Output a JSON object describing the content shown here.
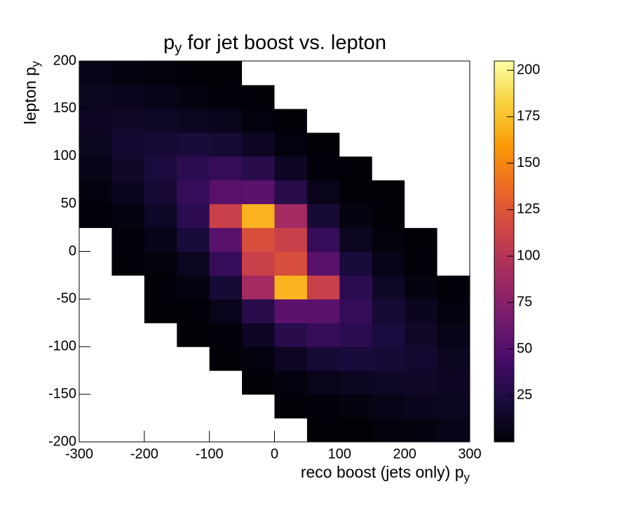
{
  "chart_data": {
    "type": "heatmap",
    "title": [
      "p",
      "y",
      " for jet boost vs. lepton"
    ],
    "xlabel": [
      "reco boost (jets only) p",
      "y"
    ],
    "ylabel": [
      "lepton p",
      "y"
    ],
    "xbins": [
      -300,
      -250,
      -200,
      -150,
      -100,
      -50,
      0,
      50,
      100,
      150,
      200,
      250,
      300
    ],
    "ybins": [
      -200,
      -175,
      -150,
      -125,
      -100,
      -75,
      -50,
      -25,
      0,
      25,
      50,
      75,
      100,
      125,
      150,
      175,
      200
    ],
    "z": [
      [
        0,
        0,
        0,
        0,
        0,
        0,
        0,
        1,
        1,
        3,
        5,
        7
      ],
      [
        0,
        0,
        0,
        0,
        0,
        0,
        1,
        2,
        5,
        7,
        10,
        11
      ],
      [
        0,
        0,
        0,
        0,
        0,
        1,
        4,
        8,
        11,
        13,
        14,
        12
      ],
      [
        0,
        0,
        0,
        0,
        1,
        4,
        12,
        19,
        21,
        19,
        16,
        11
      ],
      [
        0,
        0,
        0,
        1,
        2,
        12,
        29,
        36,
        31,
        22,
        14,
        7
      ],
      [
        0,
        0,
        1,
        1,
        8,
        29,
        54,
        53,
        35,
        19,
        10,
        4
      ],
      [
        0,
        0,
        1,
        5,
        19,
        90,
        170,
        110,
        31,
        13,
        5,
        2
      ],
      [
        0,
        1,
        3,
        11,
        36,
        110,
        120,
        53,
        21,
        7,
        2,
        0
      ],
      [
        0,
        2,
        7,
        21,
        53,
        120,
        110,
        36,
        11,
        3,
        1,
        0
      ],
      [
        2,
        5,
        13,
        31,
        110,
        170,
        90,
        19,
        5,
        1,
        0,
        0
      ],
      [
        4,
        10,
        19,
        35,
        53,
        54,
        29,
        8,
        1,
        1,
        0,
        0
      ],
      [
        7,
        14,
        22,
        31,
        36,
        29,
        12,
        2,
        1,
        0,
        0,
        0
      ],
      [
        11,
        16,
        19,
        21,
        19,
        12,
        4,
        1,
        0,
        0,
        0,
        0
      ],
      [
        12,
        14,
        13,
        11,
        8,
        4,
        1,
        0,
        0,
        0,
        0,
        0
      ],
      [
        11,
        10,
        7,
        5,
        2,
        1,
        0,
        0,
        0,
        0,
        0,
        0
      ],
      [
        7,
        5,
        3,
        1,
        1,
        0,
        0,
        0,
        0,
        0,
        0,
        0
      ]
    ],
    "xlim": [
      -300,
      300
    ],
    "ylim": [
      -200,
      200
    ],
    "xticks": [
      -300,
      -200,
      -100,
      0,
      100,
      200,
      300
    ],
    "yticks": [
      -200,
      -150,
      -100,
      -50,
      0,
      50,
      100,
      150,
      200
    ],
    "zlim": [
      0,
      205
    ],
    "zticks": [
      25,
      50,
      75,
      100,
      125,
      150,
      175,
      200
    ],
    "colormap": [
      "#000004",
      "#1b0c41",
      "#4a0c6b",
      "#781c6d",
      "#a52c60",
      "#cf4446",
      "#ed6925",
      "#fb9b06",
      "#f7d13d",
      "#fcffa4"
    ],
    "empty_color": "#ffffff"
  }
}
